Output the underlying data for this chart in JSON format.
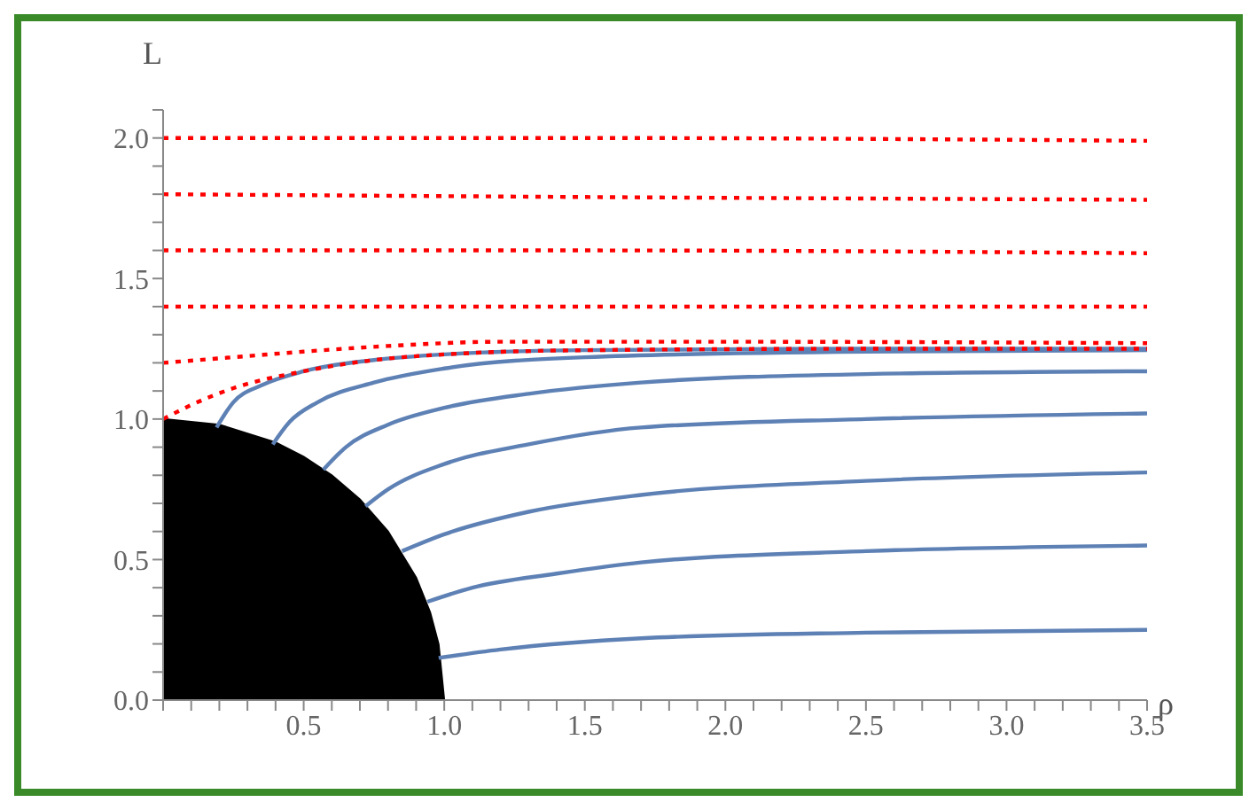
{
  "chart_data": {
    "type": "line",
    "xlabel": "ρ",
    "ylabel": "L",
    "xlim": [
      0,
      3.5
    ],
    "ylim": [
      0,
      2.1
    ],
    "xticks": [
      {
        "value": 0,
        "label": null
      },
      {
        "value": 0.1,
        "label": null
      },
      {
        "value": 0.2,
        "label": null
      },
      {
        "value": 0.3,
        "label": null
      },
      {
        "value": 0.4,
        "label": null
      },
      0.5,
      {
        "value": 0.6,
        "label": null
      },
      {
        "value": 0.7,
        "label": null
      },
      {
        "value": 0.8,
        "label": null
      },
      {
        "value": 0.9,
        "label": null
      },
      {
        "value": 1,
        "label": "1.0"
      },
      {
        "value": 1.1,
        "label": null
      },
      {
        "value": 1.2,
        "label": null
      },
      {
        "value": 1.3,
        "label": null
      },
      {
        "value": 1.4,
        "label": null
      },
      1.5,
      {
        "value": 1.6,
        "label": null
      },
      {
        "value": 1.7,
        "label": null
      },
      {
        "value": 1.8,
        "label": null
      },
      {
        "value": 1.9,
        "label": null
      },
      {
        "value": 2,
        "label": "2.0"
      },
      {
        "value": 2.1,
        "label": null
      },
      {
        "value": 2.2,
        "label": null
      },
      {
        "value": 2.3,
        "label": null
      },
      {
        "value": 2.4,
        "label": null
      },
      2.5,
      {
        "value": 2.6,
        "label": null
      },
      {
        "value": 2.7,
        "label": null
      },
      {
        "value": 2.8,
        "label": null
      },
      {
        "value": 2.9,
        "label": null
      },
      {
        "value": 3,
        "label": "3.0"
      },
      {
        "value": 3.1,
        "label": null
      },
      {
        "value": 3.2,
        "label": null
      },
      {
        "value": 3.3,
        "label": null
      },
      {
        "value": 3.4,
        "label": null
      },
      3.5
    ],
    "yticks": [
      {
        "value": 0,
        "label": "0.0"
      },
      {
        "value": 0.1,
        "label": null
      },
      {
        "value": 0.2,
        "label": null
      },
      {
        "value": 0.3,
        "label": null
      },
      {
        "value": 0.4,
        "label": null
      },
      0.5,
      {
        "value": 0.6,
        "label": null
      },
      {
        "value": 0.7,
        "label": null
      },
      {
        "value": 0.8,
        "label": null
      },
      {
        "value": 0.9,
        "label": null
      },
      {
        "value": 1,
        "label": "1.0"
      },
      {
        "value": 1.1,
        "label": null
      },
      {
        "value": 1.2,
        "label": null
      },
      {
        "value": 1.3,
        "label": null
      },
      {
        "value": 1.4,
        "label": null
      },
      1.5,
      {
        "value": 1.6,
        "label": null
      },
      {
        "value": 1.7,
        "label": null
      },
      {
        "value": 1.8,
        "label": null
      },
      {
        "value": 1.9,
        "label": null
      },
      {
        "value": 2,
        "label": "2.0"
      },
      {
        "value": 2.1,
        "label": null
      }
    ],
    "marker": "none",
    "series": [
      {
        "type": "area",
        "color": "#000000",
        "x": [
          0,
          0.2,
          0.4,
          0.5,
          0.6,
          0.7,
          0.8,
          0.9,
          0.95,
          0.98,
          1.0
        ],
        "values": [
          1,
          0.98,
          0.917,
          0.866,
          0.8,
          0.714,
          0.6,
          0.436,
          0.312,
          0.199,
          0
        ]
      },
      {
        "color": "#5e81b5",
        "line_style": "solid",
        "x": [
          0.19,
          0.25,
          0.35,
          0.5,
          0.75,
          1.0,
          1.5,
          2.5,
          3.5
        ],
        "values": [
          0.97,
          1.06,
          1.12,
          1.17,
          1.21,
          1.23,
          1.245,
          1.25,
          1.25
        ]
      },
      {
        "color": "#5e81b5",
        "line_style": "solid",
        "x": [
          0.39,
          0.45,
          0.55,
          0.75,
          1.0,
          1.5,
          2.5,
          3.5
        ],
        "values": [
          0.91,
          0.99,
          1.06,
          1.13,
          1.18,
          1.22,
          1.24,
          1.245
        ]
      },
      {
        "color": "#5e81b5",
        "line_style": "solid",
        "x": [
          0.57,
          0.65,
          0.8,
          1.0,
          1.3,
          1.7,
          2.5,
          3.5
        ],
        "values": [
          0.82,
          0.9,
          0.98,
          1.04,
          1.09,
          1.13,
          1.16,
          1.17
        ]
      },
      {
        "color": "#5e81b5",
        "line_style": "solid",
        "x": [
          0.72,
          0.8,
          1.0,
          1.3,
          1.7,
          2.5,
          3.5
        ],
        "values": [
          0.69,
          0.75,
          0.84,
          0.91,
          0.97,
          1.0,
          1.02
        ]
      },
      {
        "color": "#5e81b5",
        "line_style": "solid",
        "x": [
          0.85,
          1.0,
          1.3,
          1.7,
          2.5,
          3.5
        ],
        "values": [
          0.53,
          0.59,
          0.67,
          0.73,
          0.78,
          0.81
        ]
      },
      {
        "color": "#5e81b5",
        "line_style": "solid",
        "x": [
          0.94,
          1.1,
          1.4,
          1.7,
          2.5,
          3.5
        ],
        "values": [
          0.35,
          0.4,
          0.45,
          0.49,
          0.53,
          0.55
        ]
      },
      {
        "color": "#5e81b5",
        "line_style": "solid",
        "x": [
          0.98,
          1.2,
          1.7,
          2.5,
          3.5
        ],
        "values": [
          0.15,
          0.18,
          0.22,
          0.24,
          0.25
        ]
      },
      {
        "color": "#ff0000",
        "line_style": "dotted",
        "x": [
          0,
          0.1,
          0.25,
          0.5,
          0.75,
          1.0,
          1.5,
          2.5,
          3.5
        ],
        "values": [
          1.0,
          1.05,
          1.11,
          1.17,
          1.21,
          1.23,
          1.245,
          1.25,
          1.25
        ]
      },
      {
        "color": "#ff0000",
        "line_style": "dotted",
        "x": [
          0,
          0.25,
          0.5,
          0.8,
          1.2,
          2.0,
          3.5
        ],
        "values": [
          1.2,
          1.22,
          1.24,
          1.26,
          1.275,
          1.275,
          1.27
        ]
      },
      {
        "color": "#ff0000",
        "line_style": "dotted",
        "x": [
          0,
          1.5,
          3.5
        ],
        "values": [
          1.4,
          1.4,
          1.4
        ]
      },
      {
        "color": "#ff0000",
        "line_style": "dotted",
        "x": [
          0,
          1.5,
          3.5
        ],
        "values": [
          1.6,
          1.6,
          1.59
        ]
      },
      {
        "color": "#ff0000",
        "line_style": "dotted",
        "x": [
          0,
          1.5,
          3.5
        ],
        "values": [
          1.8,
          1.79,
          1.78
        ]
      },
      {
        "color": "#ff0000",
        "line_style": "dotted",
        "x": [
          0,
          1.5,
          3.5
        ],
        "values": [
          2.0,
          2.0,
          1.99
        ]
      }
    ]
  }
}
